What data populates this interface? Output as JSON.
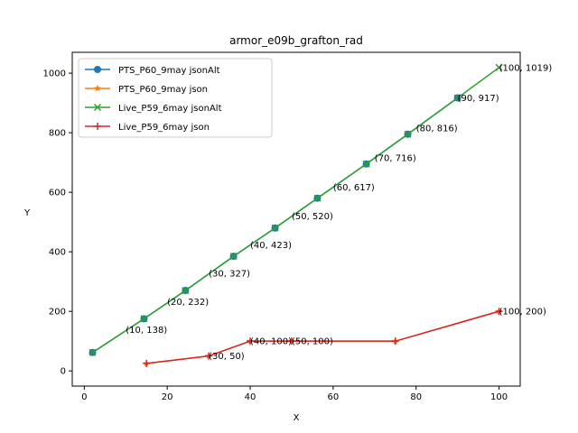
{
  "chart_data": {
    "type": "line",
    "title": "armor_e09b_grafton_rad",
    "xlabel": "X",
    "ylabel": "Y",
    "xlim": [
      -2.9,
      105.1
    ],
    "ylim": [
      -51,
      1070
    ],
    "x_ticks": [
      0,
      20,
      40,
      60,
      80,
      100
    ],
    "y_ticks": [
      0,
      200,
      400,
      600,
      800,
      1000
    ],
    "grid": false,
    "legend_position": "upper-left",
    "series": [
      {
        "name": "PTS_P60_9may jsonAlt",
        "color": "#1f77b4",
        "marker": "circle",
        "x": [
          2,
          14.4,
          24.4,
          36,
          46,
          56.2,
          68,
          78,
          90
        ],
        "y": [
          62,
          175,
          270,
          385,
          480,
          580,
          695,
          795,
          917
        ]
      },
      {
        "name": "PTS_P60_9may json",
        "color": "#ff7f0e",
        "marker": "star",
        "x": [
          15,
          30,
          40,
          50,
          75,
          100
        ],
        "y": [
          25,
          50,
          100,
          100,
          100,
          200
        ]
      },
      {
        "name": "Live_P59_6may jsonAlt",
        "color": "#2ca02c",
        "marker": "x",
        "x": [
          2,
          14.4,
          24.4,
          36,
          46,
          56.2,
          68,
          78,
          90,
          100
        ],
        "y": [
          62,
          175,
          270,
          385,
          480,
          580,
          695,
          795,
          917,
          1019
        ]
      },
      {
        "name": "Live_P59_6may json",
        "color": "#d62728",
        "marker": "plus",
        "x": [
          15,
          30,
          40,
          50,
          75,
          100
        ],
        "y": [
          25,
          50,
          100,
          100,
          100,
          200
        ]
      }
    ],
    "annotations": [
      {
        "text": "(10, 138)",
        "x": 10,
        "y": 138
      },
      {
        "text": "(20, 232)",
        "x": 20,
        "y": 232
      },
      {
        "text": "(30, 327)",
        "x": 30,
        "y": 327
      },
      {
        "text": "(40, 423)",
        "x": 40,
        "y": 423
      },
      {
        "text": "(50, 520)",
        "x": 50,
        "y": 520
      },
      {
        "text": "(60, 617)",
        "x": 60,
        "y": 617
      },
      {
        "text": "(70, 716)",
        "x": 70,
        "y": 716
      },
      {
        "text": "(80, 816)",
        "x": 80,
        "y": 816
      },
      {
        "text": "(90, 917)",
        "x": 90,
        "y": 917
      },
      {
        "text": "(100, 1019)",
        "x": 100,
        "y": 1019
      },
      {
        "text": "(30, 50)",
        "x": 30,
        "y": 50
      },
      {
        "text": "(40, 100)",
        "x": 40,
        "y": 100
      },
      {
        "text": "(50, 100)",
        "x": 50,
        "y": 100
      },
      {
        "text": "(100, 200)",
        "x": 100,
        "y": 200
      }
    ]
  }
}
